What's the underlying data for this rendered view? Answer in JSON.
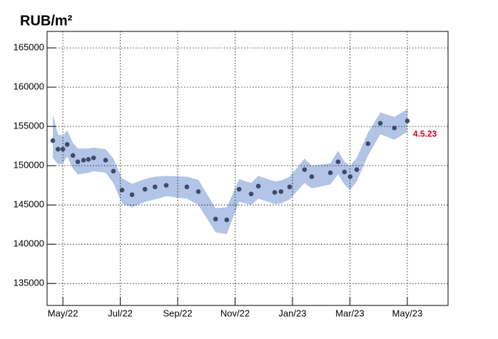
{
  "chart_data": {
    "type": "scatter",
    "title": "RUB/m²",
    "x": [
      -0.35,
      -0.17,
      0,
      0.15,
      0.35,
      0.52,
      0.72,
      0.89,
      1.07,
      1.49,
      1.76,
      2.06,
      2.41,
      2.86,
      3.21,
      3.6,
      4.32,
      4.72,
      5.32,
      5.71,
      6.14,
      6.56,
      6.81,
      7.38,
      7.6,
      7.9,
      8.42,
      8.67,
      9.32,
      9.59,
      9.81,
      10.01,
      10.24,
      10.63,
      11.06,
      11.55,
      12
    ],
    "values": [
      153200,
      152100,
      152100,
      152700,
      151300,
      150500,
      150700,
      150800,
      151000,
      150700,
      149300,
      146900,
      146300,
      147000,
      147300,
      147500,
      147300,
      146700,
      143200,
      143100,
      147000,
      146400,
      147400,
      146600,
      146700,
      147300,
      149500,
      148600,
      149100,
      150500,
      149200,
      148600,
      149500,
      152800,
      155400,
      154800,
      155700
    ],
    "band_upper": [
      156500,
      154000,
      153800,
      154500,
      152900,
      152200,
      152200,
      152200,
      152300,
      152100,
      150900,
      148400,
      147700,
      148300,
      148600,
      148700,
      148600,
      148200,
      144600,
      144700,
      148300,
      147800,
      148700,
      148000,
      148100,
      148600,
      150900,
      150000,
      150300,
      151900,
      150500,
      150000,
      151000,
      154200,
      156800,
      156200,
      157200
    ],
    "band_lower": [
      151000,
      150200,
      150300,
      151200,
      149600,
      148900,
      149000,
      149100,
      149300,
      149100,
      147800,
      145200,
      144700,
      145400,
      145700,
      146100,
      145800,
      145000,
      141500,
      141300,
      145400,
      145000,
      145800,
      145100,
      145200,
      145700,
      147800,
      147100,
      147600,
      148900,
      147600,
      146900,
      148000,
      151300,
      154000,
      153300,
      154300
    ],
    "color": "#3d4b68",
    "band_color": "#b2c5e6",
    "annotation": "4.5.23",
    "annotation_color": "#d0021b",
    "xlim": [
      -0.55,
      13.42
    ],
    "xticks": [
      {
        "value": 0,
        "label": "May/22"
      },
      {
        "value": 2,
        "label": "Jul/22"
      },
      {
        "value": 4,
        "label": "Sep/22"
      },
      {
        "value": 6,
        "label": "Nov/22"
      },
      {
        "value": 8,
        "label": "Jan/23"
      },
      {
        "value": 10,
        "label": "Mar/23"
      },
      {
        "value": 12,
        "label": "May/23"
      }
    ],
    "ylim": [
      132200,
      167100
    ],
    "yticks": [
      135000,
      140000,
      145000,
      150000,
      155000,
      160000,
      165000
    ],
    "grid": true
  }
}
